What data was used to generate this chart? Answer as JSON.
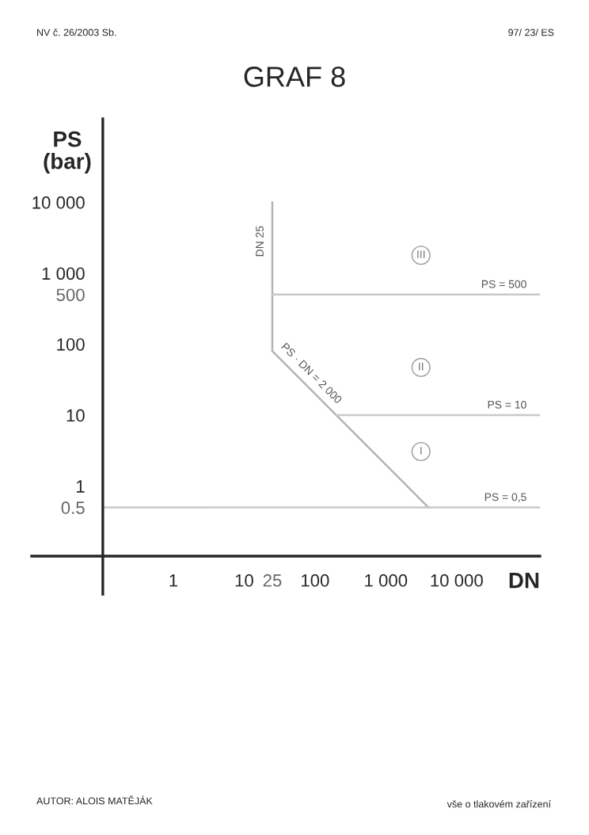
{
  "chart_data": {
    "type": "line",
    "title": "GRAF 8",
    "xlabel": "DN",
    "ylabel": "PS\n(bar)",
    "log": "xy",
    "grid": false,
    "legend": false,
    "marker": "none",
    "line_style": "solid",
    "xlim": [
      0.01,
      150000
    ],
    "ylim": [
      0.03,
      150000
    ],
    "xticks": [
      1,
      10,
      {
        "value": 25,
        "label": "25"
      },
      100,
      {
        "value": 1000,
        "label": "1 000"
      },
      {
        "value": 10000,
        "label": "10 000"
      }
    ],
    "yticks": [
      {
        "value": 0.5,
        "label": "0.5"
      },
      1,
      10,
      100,
      {
        "value": 500,
        "label": "500"
      },
      {
        "value": 1000,
        "label": "1 000"
      },
      {
        "value": 10000,
        "label": "10 000"
      }
    ],
    "series": [
      {
        "name": "DN 25",
        "color": "#b4b4b4",
        "x": [
          25,
          25
        ],
        "values": [
          80,
          10000
        ]
      },
      {
        "name": "PS · DN = 2 000",
        "color": "#b4b4b4",
        "x": [
          25,
          4000
        ],
        "values": [
          80,
          0.5
        ]
      },
      {
        "name": "PS = 500",
        "color": "#c8c8c8",
        "x": [
          25,
          150000
        ],
        "values": [
          500,
          500
        ]
      },
      {
        "name": "PS = 10",
        "color": "#c8c8c8",
        "x": [
          200,
          150000
        ],
        "values": [
          10,
          10
        ]
      },
      {
        "name": "PS = 0,5",
        "color": "#c8c8c8",
        "x": [
          0.1,
          150000
        ],
        "values": [
          0.5,
          0.5
        ]
      }
    ],
    "annotations": [
      "III",
      "II",
      "I",
      "NV č. 26/2003 Sb.",
      "97/ 23/ ES",
      "AUTOR: ALOIS MATĚJÁK",
      "vše o tlakovém zařízení"
    ]
  }
}
